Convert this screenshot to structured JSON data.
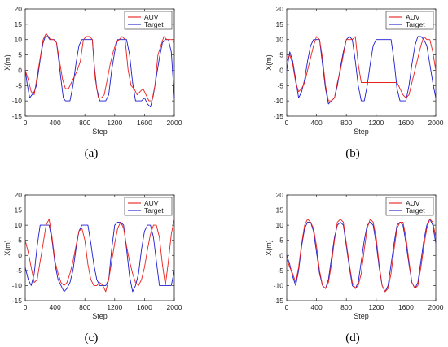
{
  "colors": {
    "auv": "#e8201c",
    "target": "#1c1ccf",
    "axis": "#262626"
  },
  "chart_data": [
    {
      "panel": "(a)",
      "type": "line",
      "xlabel": "Step",
      "ylabel": "X(m)",
      "xlim": [
        0,
        2000
      ],
      "ylim": [
        -15,
        20
      ],
      "xticks": [
        "0",
        "400",
        "800",
        "1200",
        "1600",
        "2000"
      ],
      "yticks": [
        "-15",
        "-10",
        "-5",
        "0",
        "5",
        "10",
        "15",
        "20"
      ],
      "legend": [
        "AUV",
        "Target"
      ],
      "legend_position": "top-right",
      "series": [
        {
          "name": "AUV",
          "x": [
            0,
            40,
            80,
            120,
            160,
            200,
            240,
            280,
            310,
            340,
            380,
            420,
            460,
            500,
            540,
            580,
            620,
            660,
            700,
            740,
            780,
            820,
            860,
            900,
            940,
            980,
            1020,
            1060,
            1100,
            1140,
            1180,
            1220,
            1260,
            1300,
            1340,
            1380,
            1420,
            1460,
            1500,
            1540,
            1580,
            1620,
            1660,
            1700,
            1740,
            1780,
            1820,
            1860,
            1900,
            1940,
            1980,
            2000
          ],
          "values": [
            0,
            -3,
            -7,
            -8,
            -2,
            4,
            10,
            12,
            11,
            10,
            10,
            9,
            3,
            -3,
            -6,
            -6,
            -4,
            -2,
            0,
            3,
            10,
            11,
            11,
            10,
            -3,
            -9,
            -9,
            -8,
            -3,
            2,
            6,
            9,
            10,
            11,
            10,
            0,
            -5,
            -6,
            -8,
            -7,
            -6,
            -8,
            -10,
            -10,
            -5,
            5,
            8,
            11,
            10,
            10,
            10,
            9
          ]
        },
        {
          "name": "Target",
          "x": [
            0,
            30,
            60,
            90,
            120,
            150,
            180,
            210,
            240,
            270,
            300,
            330,
            360,
            390,
            420,
            450,
            480,
            510,
            540,
            560,
            600,
            640,
            680,
            720,
            760,
            800,
            840,
            880,
            900,
            920,
            960,
            1000,
            1040,
            1080,
            1120,
            1160,
            1200,
            1240,
            1280,
            1320,
            1360,
            1400,
            1440,
            1480,
            1520,
            1560,
            1600,
            1640,
            1680,
            1720,
            1760,
            1800,
            1840,
            1880,
            1920,
            1960,
            2000
          ],
          "values": [
            0,
            -5,
            -9,
            -8,
            -7,
            -5,
            0,
            5,
            9,
            11,
            11,
            10,
            10,
            10,
            9,
            3,
            -3,
            -9,
            -10,
            -10,
            -10,
            -5,
            2,
            8,
            10,
            10,
            10,
            10,
            10,
            3,
            -6,
            -10,
            -10,
            -10,
            -8,
            0,
            6,
            10,
            10,
            10,
            10,
            5,
            -4,
            -10,
            -10,
            -10,
            -9,
            -11,
            -12,
            -8,
            -2,
            4,
            9,
            10,
            10,
            6,
            -9
          ]
        }
      ]
    },
    {
      "panel": "(b)",
      "type": "line",
      "xlabel": "Step",
      "ylabel": "X(m)",
      "xlim": [
        0,
        2000
      ],
      "ylim": [
        -15,
        20
      ],
      "xticks": [
        "0",
        "400",
        "800",
        "1200",
        "1600",
        "2000"
      ],
      "yticks": [
        "-15",
        "-10",
        "-5",
        "0",
        "5",
        "10",
        "15",
        "20"
      ],
      "legend": [
        "AUV",
        "Target"
      ],
      "legend_position": "top-right",
      "series": [
        {
          "name": "AUV",
          "x": [
            0,
            40,
            80,
            120,
            160,
            200,
            240,
            280,
            320,
            360,
            400,
            440,
            480,
            520,
            560,
            600,
            640,
            680,
            720,
            760,
            800,
            840,
            880,
            920,
            960,
            1000,
            1040,
            1080,
            1120,
            1160,
            1200,
            1240,
            1280,
            1320,
            1360,
            1400,
            1440,
            1480,
            1520,
            1560,
            1600,
            1640,
            1680,
            1720,
            1760,
            1800,
            1840,
            1880,
            1920,
            1960,
            2000
          ],
          "values": [
            3,
            5,
            2,
            -4,
            -7,
            -6,
            -4,
            0,
            4,
            8,
            11,
            10,
            4,
            -5,
            -10,
            -10,
            -9,
            -4,
            0,
            5,
            10,
            10,
            10,
            11,
            2,
            -4,
            -4,
            -4,
            -4,
            -4,
            -4,
            -4,
            -4,
            -4,
            -4,
            -4,
            -4,
            -4,
            -6,
            -8,
            -9,
            -8,
            -4,
            0,
            4,
            8,
            11,
            10,
            10,
            6,
            0
          ]
        },
        {
          "name": "Target",
          "x": [
            0,
            40,
            80,
            120,
            160,
            200,
            240,
            280,
            320,
            360,
            400,
            440,
            480,
            520,
            560,
            600,
            640,
            680,
            720,
            760,
            800,
            840,
            880,
            920,
            960,
            1000,
            1040,
            1080,
            1120,
            1160,
            1200,
            1240,
            1280,
            1320,
            1360,
            1400,
            1440,
            1480,
            1520,
            1560,
            1600,
            1640,
            1680,
            1720,
            1760,
            1800,
            1840,
            1880,
            1920,
            1960,
            2000
          ],
          "values": [
            0,
            6,
            3,
            -3,
            -9,
            -7,
            -3,
            3,
            8,
            10,
            10,
            10,
            2,
            -6,
            -11,
            -10,
            -9,
            -5,
            1,
            6,
            10,
            11,
            10,
            3,
            -5,
            -10,
            -10,
            -5,
            2,
            8,
            10,
            10,
            10,
            10,
            10,
            10,
            3,
            -6,
            -10,
            -10,
            -10,
            -5,
            2,
            8,
            11,
            11,
            10,
            8,
            2,
            -4,
            -9
          ]
        }
      ]
    },
    {
      "panel": "(c)",
      "type": "line",
      "xlabel": "Step",
      "ylabel": "X(m)",
      "xlim": [
        0,
        2000
      ],
      "ylim": [
        -15,
        20
      ],
      "xticks": [
        "0",
        "400",
        "800",
        "1200",
        "1600",
        "2000"
      ],
      "yticks": [
        "-15",
        "-10",
        "-5",
        "0",
        "5",
        "10",
        "15",
        "20"
      ],
      "legend": [
        "AUV",
        "Target"
      ],
      "legend_position": "top-right",
      "series": [
        {
          "name": "AUV",
          "x": [
            0,
            40,
            80,
            120,
            160,
            200,
            240,
            280,
            320,
            360,
            400,
            440,
            480,
            520,
            560,
            600,
            640,
            680,
            720,
            760,
            800,
            840,
            880,
            920,
            960,
            1000,
            1040,
            1080,
            1120,
            1160,
            1200,
            1240,
            1280,
            1320,
            1360,
            1400,
            1440,
            1480,
            1520,
            1560,
            1600,
            1640,
            1680,
            1720,
            1760,
            1800,
            1840,
            1880,
            1920,
            1960,
            2000
          ],
          "values": [
            5,
            1,
            -4,
            -9,
            -8,
            -2,
            4,
            10,
            12,
            6,
            -2,
            -6,
            -9,
            -10,
            -9,
            -6,
            -2,
            3,
            8,
            9,
            5,
            -3,
            -8,
            -10,
            -10,
            -9,
            -10,
            -12,
            -8,
            -2,
            4,
            9,
            11,
            9,
            3,
            -2,
            -6,
            -9,
            -10,
            -8,
            -4,
            2,
            7,
            10,
            10,
            6,
            -3,
            -10,
            -2,
            7,
            12
          ]
        },
        {
          "name": "Target",
          "x": [
            0,
            40,
            80,
            120,
            160,
            200,
            240,
            280,
            320,
            360,
            400,
            440,
            480,
            520,
            560,
            600,
            640,
            680,
            720,
            760,
            800,
            840,
            880,
            920,
            960,
            1000,
            1040,
            1080,
            1120,
            1160,
            1200,
            1240,
            1280,
            1320,
            1360,
            1400,
            1440,
            1480,
            1520,
            1560,
            1600,
            1640,
            1680,
            1720,
            1760,
            1800,
            1840,
            1880,
            1920,
            1960,
            2000
          ],
          "values": [
            -4,
            -8,
            -10,
            -6,
            3,
            10,
            10,
            10,
            10,
            5,
            -3,
            -8,
            -10,
            -12,
            -11,
            -9,
            -5,
            2,
            8,
            10,
            10,
            10,
            4,
            -3,
            -8,
            -10,
            -10,
            -10,
            -8,
            2,
            10,
            11,
            11,
            10,
            2,
            -7,
            -12,
            -10,
            -6,
            2,
            8,
            10,
            10,
            6,
            -2,
            -10,
            -10,
            -10,
            -10,
            -10,
            -5
          ]
        }
      ]
    },
    {
      "panel": "(d)",
      "type": "line",
      "xlabel": "Step",
      "ylabel": "X(m)",
      "xlim": [
        0,
        2000
      ],
      "ylim": [
        -15,
        20
      ],
      "xticks": [
        "0",
        "400",
        "800",
        "1200",
        "1600",
        "2000"
      ],
      "yticks": [
        "-15",
        "-10",
        "-5",
        "0",
        "5",
        "10",
        "15",
        "20"
      ],
      "legend": [
        "AUV",
        "Target"
      ],
      "legend_position": "top-right",
      "series": [
        {
          "name": "AUV",
          "x": [
            0,
            40,
            80,
            120,
            160,
            200,
            240,
            280,
            320,
            360,
            400,
            440,
            480,
            520,
            560,
            600,
            640,
            680,
            720,
            760,
            800,
            840,
            880,
            920,
            960,
            1000,
            1040,
            1080,
            1120,
            1160,
            1200,
            1240,
            1280,
            1320,
            1360,
            1400,
            1440,
            1480,
            1520,
            1560,
            1600,
            1640,
            1680,
            1720,
            1760,
            1800,
            1840,
            1880,
            1920,
            1960,
            2000
          ],
          "values": [
            -1,
            -4,
            -6,
            -9,
            -4,
            4,
            10,
            12,
            11,
            9,
            3,
            -5,
            -10,
            -11,
            -9,
            -3,
            5,
            11,
            12,
            11,
            4,
            -3,
            -9,
            -11,
            -10,
            -6,
            2,
            9,
            12,
            11,
            6,
            -3,
            -10,
            -12,
            -11,
            -6,
            2,
            9,
            11,
            11,
            6,
            -2,
            -9,
            -11,
            -10,
            -4,
            3,
            9,
            12,
            11,
            6
          ]
        },
        {
          "name": "Target",
          "x": [
            0,
            40,
            80,
            120,
            160,
            200,
            240,
            280,
            320,
            360,
            400,
            440,
            480,
            520,
            560,
            600,
            640,
            680,
            720,
            760,
            800,
            840,
            880,
            920,
            960,
            1000,
            1040,
            1080,
            1120,
            1160,
            1200,
            1240,
            1280,
            1320,
            1360,
            1400,
            1440,
            1480,
            1520,
            1560,
            1600,
            1640,
            1680,
            1720,
            1760,
            1800,
            1840,
            1880,
            1920,
            1960,
            2000
          ],
          "values": [
            0,
            -3,
            -7,
            -10,
            -5,
            3,
            9,
            11,
            11,
            8,
            1,
            -6,
            -10,
            -11,
            -8,
            -1,
            6,
            10,
            11,
            10,
            3,
            -4,
            -10,
            -11,
            -9,
            -2,
            5,
            10,
            11,
            10,
            4,
            -4,
            -10,
            -12,
            -10,
            -3,
            4,
            10,
            11,
            10,
            4,
            -3,
            -9,
            -11,
            -9,
            -2,
            5,
            10,
            12,
            10,
            4
          ]
        }
      ]
    }
  ]
}
